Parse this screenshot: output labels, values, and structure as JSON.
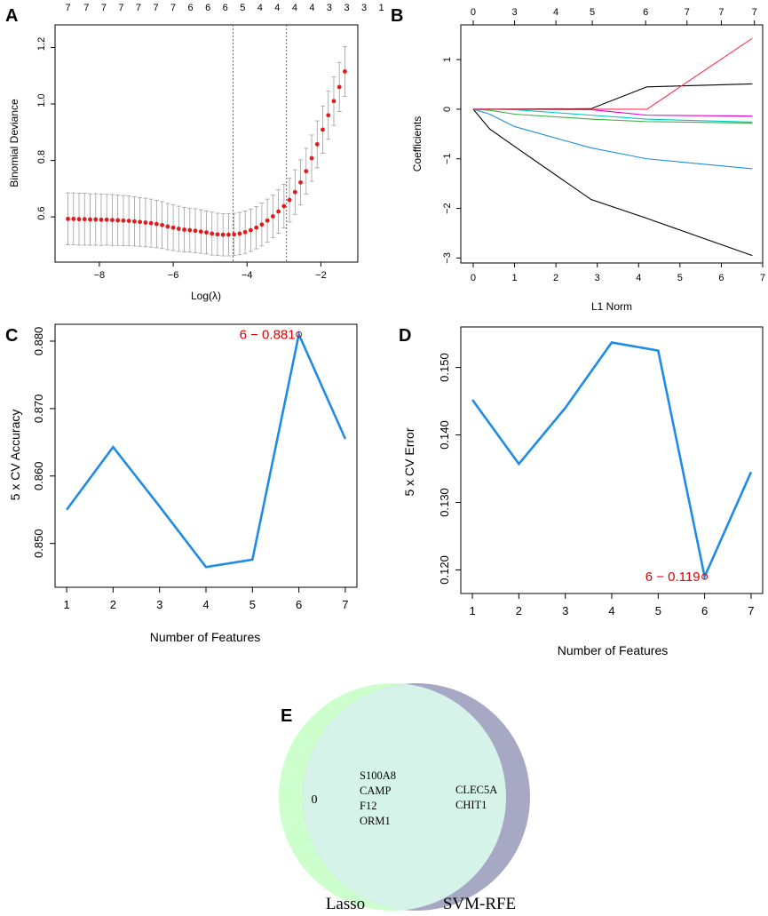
{
  "panels": {
    "A": {
      "letter": "A",
      "type": "scatter",
      "xlabel": "Log(λ)",
      "ylabel": "Binomial Deviance",
      "xlim": [
        -9.2,
        -1.0
      ],
      "ylim": [
        0.44,
        1.28
      ],
      "x_ticks": [
        -8,
        -6,
        -4,
        -2
      ],
      "y_ticks": [
        0.6,
        0.8,
        1.0,
        1.2
      ],
      "top_axis_labels": [
        "7",
        "7",
        "7",
        "7",
        "7",
        "7",
        "7",
        "6",
        "6",
        "6",
        "5",
        "4",
        "4",
        "4",
        "4",
        "3",
        "3",
        "3",
        "1"
      ],
      "top_axis_positions": [
        -8.85,
        -8.35,
        -7.88,
        -7.41,
        -6.94,
        -6.47,
        -6.0,
        -5.53,
        -5.06,
        -4.59,
        -4.12,
        -3.65,
        -3.18,
        -2.71,
        -2.24,
        -1.77,
        -1.3,
        -0.83,
        -0.36
      ],
      "vlines": [
        -4.38,
        -2.93
      ],
      "x": [
        -8.85,
        -8.7,
        -8.55,
        -8.4,
        -8.25,
        -8.1,
        -7.95,
        -7.8,
        -7.65,
        -7.5,
        -7.35,
        -7.2,
        -7.05,
        -6.9,
        -6.75,
        -6.6,
        -6.45,
        -6.3,
        -6.15,
        -6.0,
        -5.85,
        -5.7,
        -5.55,
        -5.4,
        -5.25,
        -5.1,
        -4.95,
        -4.8,
        -4.65,
        -4.5,
        -4.35,
        -4.2,
        -4.05,
        -3.9,
        -3.75,
        -3.6,
        -3.45,
        -3.3,
        -3.15,
        -3.0,
        -2.85,
        -2.7,
        -2.55,
        -2.4,
        -2.25,
        -2.1,
        -1.95,
        -1.8,
        -1.65,
        -1.5,
        -1.35
      ],
      "y": [
        0.593,
        0.593,
        0.592,
        0.592,
        0.591,
        0.591,
        0.59,
        0.59,
        0.589,
        0.588,
        0.587,
        0.586,
        0.584,
        0.582,
        0.58,
        0.578,
        0.575,
        0.571,
        0.566,
        0.562,
        0.558,
        0.555,
        0.553,
        0.551,
        0.548,
        0.545,
        0.541,
        0.538,
        0.537,
        0.537,
        0.538,
        0.541,
        0.546,
        0.553,
        0.562,
        0.573,
        0.587,
        0.602,
        0.619,
        0.638,
        0.66,
        0.688,
        0.722,
        0.762,
        0.808,
        0.857,
        0.909,
        0.96,
        1.01,
        1.06,
        1.115
      ],
      "se": [
        0.092,
        0.092,
        0.092,
        0.092,
        0.091,
        0.091,
        0.091,
        0.09,
        0.09,
        0.089,
        0.089,
        0.088,
        0.087,
        0.086,
        0.086,
        0.085,
        0.084,
        0.083,
        0.082,
        0.081,
        0.08,
        0.079,
        0.078,
        0.078,
        0.077,
        0.076,
        0.076,
        0.075,
        0.075,
        0.075,
        0.075,
        0.075,
        0.075,
        0.075,
        0.075,
        0.076,
        0.076,
        0.076,
        0.077,
        0.077,
        0.078,
        0.079,
        0.08,
        0.081,
        0.082,
        0.083,
        0.084,
        0.085,
        0.086,
        0.087,
        0.088
      ],
      "colors": {
        "points": "#e31a1c",
        "error_bars": "#9e9e9e",
        "vline": "#555555"
      }
    },
    "B": {
      "letter": "B",
      "type": "line",
      "xlabel": "L1 Norm",
      "ylabel": "Coefficients",
      "xlim": [
        0,
        7
      ],
      "ylim": [
        -3.1,
        1.7
      ],
      "x_ticks": [
        0,
        1,
        2,
        3,
        4,
        5,
        6,
        7
      ],
      "y_ticks": [
        -3,
        -2,
        -1,
        0,
        1
      ],
      "top_axis_labels": [
        "0",
        "3",
        "4",
        "5",
        "6",
        "7",
        "7",
        "7"
      ],
      "top_axis_positions": [
        0,
        1.0,
        2.0,
        2.88,
        4.17,
        5.17,
        6.0,
        6.8
      ],
      "series": [
        {
          "name": "s1",
          "color": "#000000",
          "x": [
            0,
            0.4,
            1.0,
            2.85,
            4.2,
            6.75
          ],
          "y": [
            0,
            -0.4,
            -0.75,
            -1.82,
            -2.2,
            -2.95
          ]
        },
        {
          "name": "s2",
          "color": "#1f8fe0",
          "x": [
            0,
            0.4,
            1.0,
            2.85,
            4.2,
            6.75
          ],
          "y": [
            0,
            -0.1,
            -0.35,
            -0.78,
            -1.0,
            -1.2
          ]
        },
        {
          "name": "s3",
          "color": "#3cb043",
          "x": [
            0,
            0.4,
            1.0,
            2.85,
            4.2,
            6.75
          ],
          "y": [
            0,
            -0.02,
            -0.1,
            -0.2,
            -0.25,
            -0.28
          ]
        },
        {
          "name": "s4",
          "color": "#00c5c5",
          "x": [
            0,
            0.4,
            1.0,
            2.85,
            4.2,
            6.75
          ],
          "y": [
            0,
            0,
            -0.01,
            -0.12,
            -0.2,
            -0.26
          ]
        },
        {
          "name": "s5",
          "color": "#e400e4",
          "x": [
            0,
            2.85,
            4.2,
            6.75
          ],
          "y": [
            0,
            -0.01,
            -0.12,
            -0.14
          ]
        },
        {
          "name": "s6",
          "color": "#000000",
          "x": [
            0,
            2.85,
            4.2,
            6.75
          ],
          "y": [
            0,
            0.01,
            0.45,
            0.51
          ]
        },
        {
          "name": "s7",
          "color": "#ff3355",
          "x": [
            0,
            4.2,
            6.75
          ],
          "y": [
            0,
            0,
            1.43
          ]
        }
      ]
    },
    "C": {
      "letter": "C",
      "type": "line",
      "xlabel": "Number of Features",
      "ylabel": "5 x CV Accuracy",
      "xlim": [
        0.75,
        7.25
      ],
      "ylim": [
        0.8435,
        0.8825
      ],
      "x_ticks": [
        1,
        2,
        3,
        4,
        5,
        6,
        7
      ],
      "y_ticks": [
        0.85,
        0.86,
        0.87,
        0.88
      ],
      "y_tick_labels": [
        "0.850",
        "0.860",
        "0.870",
        "0.880"
      ],
      "x": [
        1,
        2,
        3,
        4,
        5,
        6,
        7
      ],
      "values": [
        0.855,
        0.8643,
        0.8555,
        0.8465,
        0.8476,
        0.881,
        0.8655
      ],
      "highlight": {
        "x": 6,
        "y": 0.881,
        "label": "6 − 0.881"
      },
      "colors": {
        "line": "#1e8ce6",
        "highlight": "#e00000"
      }
    },
    "D": {
      "letter": "D",
      "type": "line",
      "xlabel": "Number of Features",
      "ylabel": "5 x CV Error",
      "xlim": [
        0.75,
        7.25
      ],
      "ylim": [
        0.1165,
        0.156
      ],
      "x_ticks": [
        1,
        2,
        3,
        4,
        5,
        6,
        7
      ],
      "y_ticks": [
        0.12,
        0.13,
        0.14,
        0.15
      ],
      "y_tick_labels": [
        "0.120",
        "0.130",
        "0.140",
        "0.150"
      ],
      "x": [
        1,
        2,
        3,
        4,
        5,
        6,
        7
      ],
      "values": [
        0.1452,
        0.1357,
        0.144,
        0.1537,
        0.1525,
        0.119,
        0.1345
      ],
      "highlight": {
        "x": 6,
        "y": 0.119,
        "label": "6 − 0.119"
      },
      "colors": {
        "line": "#1e8ce6",
        "highlight": "#e00000"
      }
    },
    "E": {
      "letter": "E",
      "type": "venn",
      "sets": [
        {
          "name": "Lasso",
          "only": [
            "0"
          ],
          "color": "#ccffcc"
        },
        {
          "name": "SVM-RFE",
          "only": [
            "CLEC5A",
            "CHIT1"
          ],
          "color": "#a7a9c4"
        }
      ],
      "intersection": [
        "S100A8",
        "CAMP",
        "F12",
        "ORM1"
      ],
      "intersection_color": "#d6f3ea"
    }
  }
}
